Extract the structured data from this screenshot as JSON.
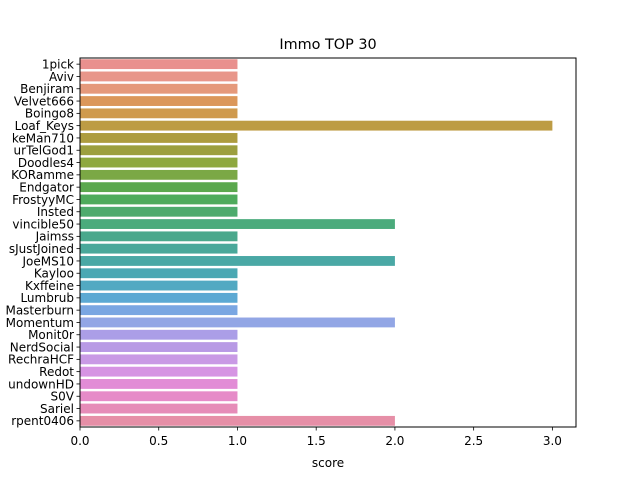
{
  "chart_data": {
    "type": "bar",
    "orientation": "horizontal",
    "title": "Immo TOP 30",
    "xlabel": "score",
    "ylabel": "",
    "xlim": [
      0,
      3.15
    ],
    "xticks": [
      "0.0",
      "0.5",
      "1.0",
      "1.5",
      "2.0",
      "2.5",
      "3.0"
    ],
    "grid": false,
    "categories": [
      "1pick",
      "Aviv",
      "Benjiram",
      "Velvet666",
      "Boingo8",
      "Loaf_Keys",
      "keMan710",
      "urTelGod1",
      "Doodles4",
      "KORamme",
      "Endgator",
      "FrostyyMC",
      "Insted",
      "vincible50",
      "Jaimss",
      "sJustJoined",
      "JoeMS10",
      "Kayloo",
      "Kxffeine",
      "Lumbrub",
      "Masterburn",
      "Momentum",
      "Monit0r",
      "NerdSocial",
      "RechraHCF",
      "Redot",
      "undownHD",
      "S0V",
      "Sariel",
      "rpent0406"
    ],
    "values": [
      1,
      1,
      1,
      1,
      1,
      3,
      1,
      1,
      1,
      1,
      1,
      1,
      1,
      2,
      1,
      1,
      2,
      1,
      1,
      1,
      1,
      2,
      1,
      1,
      1,
      1,
      1,
      1,
      1,
      2
    ],
    "colors": [
      "#e9908e",
      "#e8968a",
      "#e5997b",
      "#db975a",
      "#cf9a4d",
      "#bd9c44",
      "#ad9c3f",
      "#9c9f3f",
      "#8ea83f",
      "#7ba845",
      "#5ba84e",
      "#4eab5c",
      "#4eab6d",
      "#4bab7c",
      "#4aa88c",
      "#49a89a",
      "#4aa8a5",
      "#4ba8b3",
      "#52a9c2",
      "#5ca9d3",
      "#7aa6e2",
      "#92a6e5",
      "#ab9ee7",
      "#b89ae5",
      "#c99ae5",
      "#d694e3",
      "#e28cd6",
      "#e68bc8",
      "#e68cb8",
      "#e68fa7"
    ]
  }
}
